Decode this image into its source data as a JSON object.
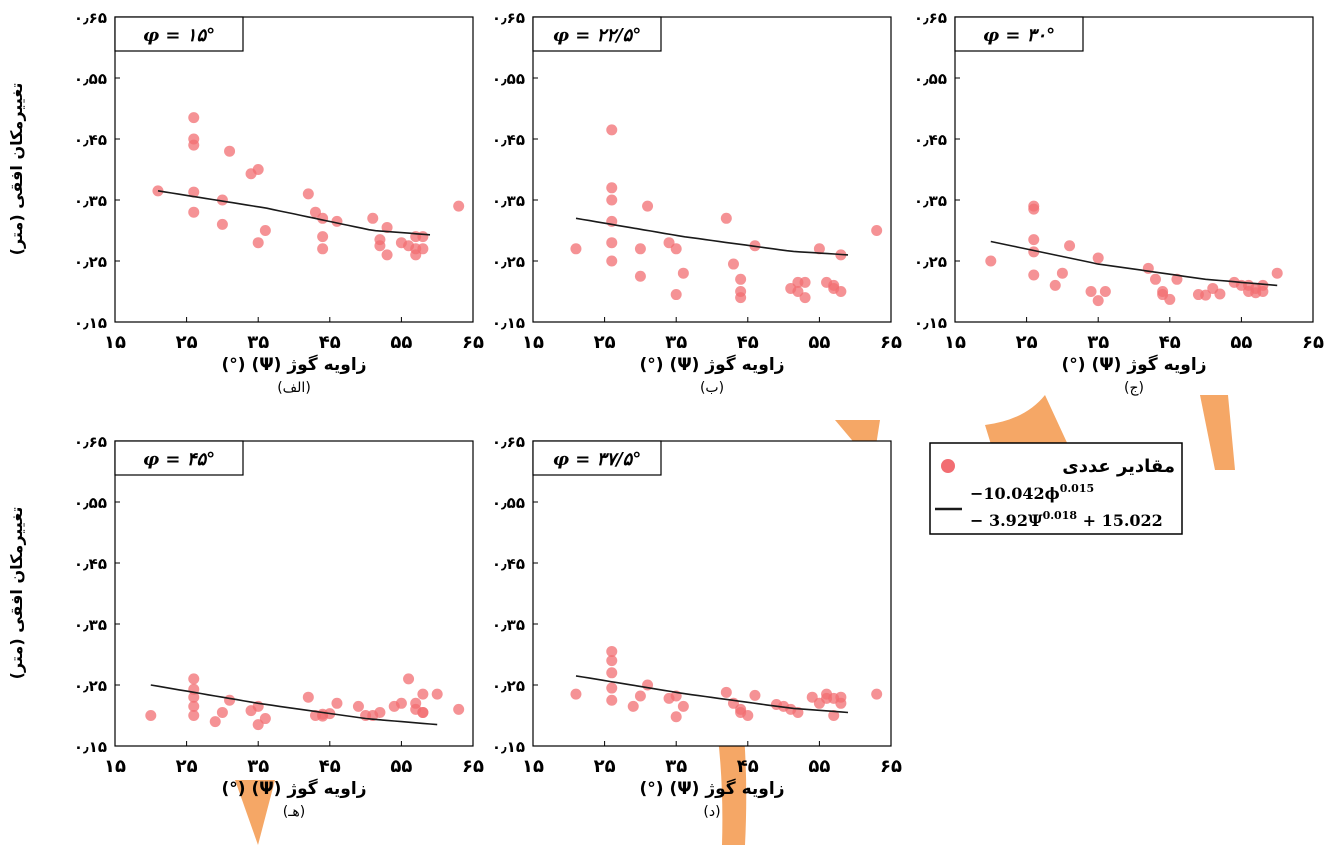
{
  "figure": {
    "ylabel": "تغییرمکان افقی (متر)",
    "xlabel": "(°) (Ψ) زاویه گوژ",
    "xticks": [
      "۱۵",
      "۲۵",
      "۳۵",
      "۴۵",
      "۵۵",
      "۶۵"
    ],
    "yticks": [
      "۰٫۱۵",
      "۰٫۲۵",
      "۰٫۳۵",
      "۰٫۴۵",
      "۰٫۵۵",
      "۰٫۶۵"
    ]
  },
  "legend": {
    "points_label": "مقادیر عددی",
    "formula_line1": "−10.042ϕ",
    "formula_exp1": "0.015",
    "formula_line2": "− 3.92Ψ",
    "formula_exp2": "0.018",
    "formula_tail": " + 15.022"
  },
  "colors": {
    "points": "#f26d72",
    "curve": "#1a1a1a",
    "deco": "#f4a25e"
  },
  "chart_data": [
    {
      "type": "scatter",
      "panel_label": "(الف)",
      "angle_label": "φ = ۱۵°",
      "xlim": [
        15,
        65
      ],
      "ylim": [
        0.15,
        0.65
      ],
      "curve": [
        [
          21,
          0.365
        ],
        [
          36,
          0.337
        ],
        [
          51,
          0.3
        ],
        [
          59,
          0.293
        ]
      ],
      "points": [
        [
          21,
          0.365
        ],
        [
          26,
          0.485
        ],
        [
          26,
          0.45
        ],
        [
          26,
          0.44
        ],
        [
          26,
          0.363
        ],
        [
          26,
          0.33
        ],
        [
          30,
          0.35
        ],
        [
          30,
          0.31
        ],
        [
          31,
          0.43
        ],
        [
          34,
          0.393
        ],
        [
          35,
          0.4
        ],
        [
          35,
          0.28
        ],
        [
          36,
          0.3
        ],
        [
          42,
          0.36
        ],
        [
          43,
          0.33
        ],
        [
          44,
          0.32
        ],
        [
          44,
          0.29
        ],
        [
          44,
          0.27
        ],
        [
          46,
          0.315
        ],
        [
          51,
          0.32
        ],
        [
          52,
          0.275
        ],
        [
          52,
          0.285
        ],
        [
          53,
          0.305
        ],
        [
          53,
          0.26
        ],
        [
          55,
          0.28
        ],
        [
          56,
          0.275
        ],
        [
          57,
          0.27
        ],
        [
          57,
          0.26
        ],
        [
          57,
          0.29
        ],
        [
          58,
          0.29
        ],
        [
          58,
          0.27
        ],
        [
          63,
          0.34
        ]
      ]
    },
    {
      "type": "scatter",
      "panel_label": "(ب)",
      "angle_label": "φ = ۲۲/۵°",
      "xlim": [
        15,
        65
      ],
      "ylim": [
        0.15,
        0.65
      ],
      "curve": [
        [
          21,
          0.32
        ],
        [
          36,
          0.29
        ],
        [
          51,
          0.266
        ],
        [
          59,
          0.26
        ]
      ],
      "points": [
        [
          21,
          0.27
        ],
        [
          26,
          0.465
        ],
        [
          26,
          0.37
        ],
        [
          26,
          0.35
        ],
        [
          26,
          0.315
        ],
        [
          26,
          0.28
        ],
        [
          26,
          0.25
        ],
        [
          30,
          0.27
        ],
        [
          30,
          0.225
        ],
        [
          31,
          0.34
        ],
        [
          34,
          0.28
        ],
        [
          35,
          0.27
        ],
        [
          35,
          0.195
        ],
        [
          36,
          0.23
        ],
        [
          42,
          0.32
        ],
        [
          43,
          0.245
        ],
        [
          44,
          0.22
        ],
        [
          44,
          0.2
        ],
        [
          44,
          0.19
        ],
        [
          46,
          0.275
        ],
        [
          51,
          0.205
        ],
        [
          52,
          0.2
        ],
        [
          52,
          0.215
        ],
        [
          53,
          0.215
        ],
        [
          53,
          0.19
        ],
        [
          55,
          0.27
        ],
        [
          56,
          0.215
        ],
        [
          57,
          0.21
        ],
        [
          57,
          0.205
        ],
        [
          58,
          0.26
        ],
        [
          58,
          0.2
        ],
        [
          63,
          0.3
        ]
      ]
    },
    {
      "type": "scatter",
      "panel_label": "(ج)",
      "angle_label": "φ = ۳۰°",
      "xlim": [
        15,
        65
      ],
      "ylim": [
        0.15,
        0.65
      ],
      "curve": [
        [
          20,
          0.282
        ],
        [
          35,
          0.245
        ],
        [
          50,
          0.22
        ],
        [
          60,
          0.21
        ]
      ],
      "points": [
        [
          20,
          0.25
        ],
        [
          26,
          0.34
        ],
        [
          26,
          0.335
        ],
        [
          26,
          0.285
        ],
        [
          26,
          0.265
        ],
        [
          26,
          0.227
        ],
        [
          29,
          0.21
        ],
        [
          30,
          0.23
        ],
        [
          31,
          0.275
        ],
        [
          34,
          0.2
        ],
        [
          35,
          0.255
        ],
        [
          35,
          0.185
        ],
        [
          36,
          0.2
        ],
        [
          42,
          0.238
        ],
        [
          43,
          0.22
        ],
        [
          44,
          0.2
        ],
        [
          44,
          0.195
        ],
        [
          45,
          0.187
        ],
        [
          46,
          0.22
        ],
        [
          49,
          0.195
        ],
        [
          50,
          0.194
        ],
        [
          51,
          0.205
        ],
        [
          52,
          0.196
        ],
        [
          54,
          0.215
        ],
        [
          55,
          0.21
        ],
        [
          56,
          0.21
        ],
        [
          56,
          0.2
        ],
        [
          57,
          0.205
        ],
        [
          57,
          0.198
        ],
        [
          58,
          0.21
        ],
        [
          58,
          0.2
        ],
        [
          60,
          0.23
        ]
      ]
    },
    {
      "type": "scatter",
      "panel_label": "(د)",
      "angle_label": "φ = ۳۷/۵°",
      "xlim": [
        15,
        65
      ],
      "ylim": [
        0.15,
        0.65
      ],
      "curve": [
        [
          21,
          0.265
        ],
        [
          36,
          0.236
        ],
        [
          51,
          0.212
        ],
        [
          59,
          0.205
        ]
      ],
      "points": [
        [
          21,
          0.235
        ],
        [
          26,
          0.305
        ],
        [
          26,
          0.29
        ],
        [
          26,
          0.27
        ],
        [
          26,
          0.245
        ],
        [
          26,
          0.225
        ],
        [
          29,
          0.215
        ],
        [
          30,
          0.232
        ],
        [
          31,
          0.25
        ],
        [
          34,
          0.228
        ],
        [
          35,
          0.232
        ],
        [
          35,
          0.198
        ],
        [
          36,
          0.215
        ],
        [
          42,
          0.238
        ],
        [
          43,
          0.22
        ],
        [
          44,
          0.21
        ],
        [
          44,
          0.205
        ],
        [
          45,
          0.2
        ],
        [
          46,
          0.233
        ],
        [
          49,
          0.218
        ],
        [
          50,
          0.215
        ],
        [
          51,
          0.21
        ],
        [
          52,
          0.205
        ],
        [
          54,
          0.23
        ],
        [
          55,
          0.22
        ],
        [
          56,
          0.235
        ],
        [
          56,
          0.228
        ],
        [
          57,
          0.228
        ],
        [
          57,
          0.2
        ],
        [
          58,
          0.23
        ],
        [
          58,
          0.22
        ],
        [
          63,
          0.235
        ]
      ]
    },
    {
      "type": "scatter",
      "panel_label": "(هـ)",
      "angle_label": "φ = ۴۵°",
      "xlim": [
        15,
        65
      ],
      "ylim": [
        0.15,
        0.65
      ],
      "curve": [
        [
          20,
          0.25
        ],
        [
          35,
          0.22
        ],
        [
          50,
          0.195
        ],
        [
          60,
          0.185
        ]
      ],
      "points": [
        [
          20,
          0.2
        ],
        [
          26,
          0.26
        ],
        [
          26,
          0.243
        ],
        [
          26,
          0.23
        ],
        [
          26,
          0.215
        ],
        [
          26,
          0.2
        ],
        [
          29,
          0.19
        ],
        [
          30,
          0.205
        ],
        [
          31,
          0.225
        ],
        [
          34,
          0.208
        ],
        [
          35,
          0.215
        ],
        [
          35,
          0.185
        ],
        [
          36,
          0.195
        ],
        [
          42,
          0.23
        ],
        [
          43,
          0.2
        ],
        [
          44,
          0.202
        ],
        [
          44,
          0.199
        ],
        [
          45,
          0.203
        ],
        [
          46,
          0.22
        ],
        [
          49,
          0.215
        ],
        [
          50,
          0.2
        ],
        [
          51,
          0.2
        ],
        [
          52,
          0.205
        ],
        [
          54,
          0.215
        ],
        [
          55,
          0.22
        ],
        [
          56,
          0.26
        ],
        [
          57,
          0.22
        ],
        [
          57,
          0.21
        ],
        [
          58,
          0.205
        ],
        [
          58,
          0.235
        ],
        [
          58,
          0.205
        ],
        [
          60,
          0.235
        ],
        [
          63,
          0.21
        ]
      ]
    }
  ]
}
